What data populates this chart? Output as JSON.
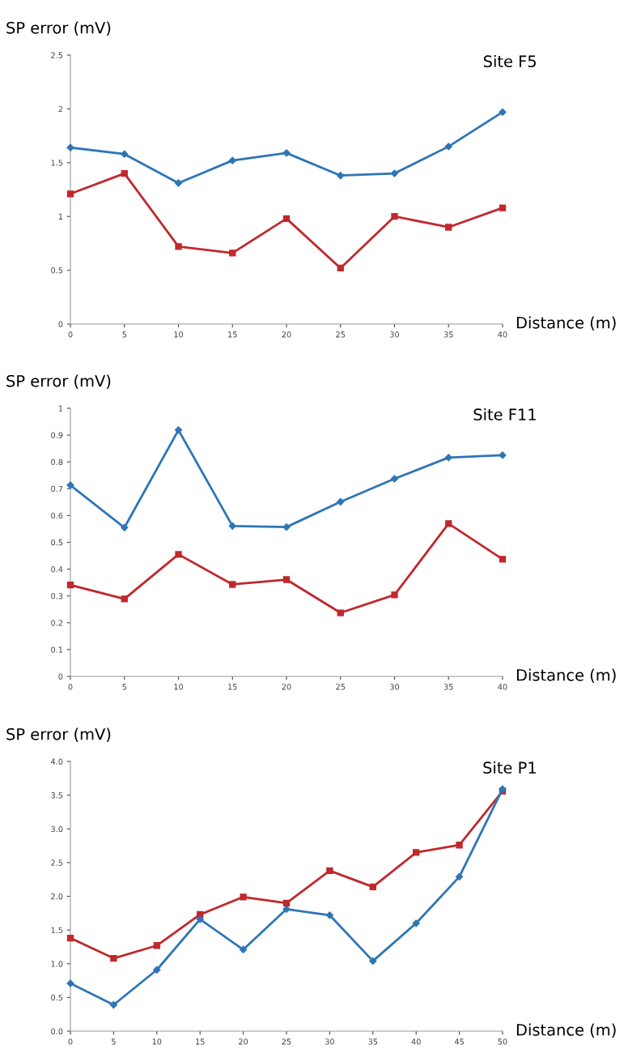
{
  "chart_data": [
    {
      "type": "line",
      "title": "Site F5",
      "xlabel": "Distance (m)",
      "ylabel": "SP error (mV)",
      "x": [
        0,
        5,
        10,
        15,
        20,
        25,
        30,
        35,
        40
      ],
      "series": [
        {
          "color": "#2e75b6",
          "marker": "diamond",
          "values": [
            1.64,
            1.58,
            1.31,
            1.52,
            1.59,
            1.38,
            1.4,
            1.65,
            1.97
          ]
        },
        {
          "color": "#c0282d",
          "marker": "square",
          "values": [
            1.21,
            1.4,
            0.72,
            0.66,
            0.98,
            0.52,
            1.0,
            0.9,
            1.08
          ]
        }
      ],
      "xlim": [
        0,
        40
      ],
      "xticks": [
        0,
        5,
        10,
        15,
        20,
        25,
        30,
        35,
        40
      ],
      "ylim": [
        0,
        2.5
      ],
      "yticks": [
        0,
        0.5,
        1,
        1.5,
        2,
        2.5
      ],
      "grid": false
    },
    {
      "type": "line",
      "title": "Site F11",
      "xlabel": "Distance (m)",
      "ylabel": "SP error (mV)",
      "x": [
        0,
        5,
        10,
        15,
        20,
        25,
        30,
        35,
        40
      ],
      "series": [
        {
          "color": "#2e75b6",
          "marker": "diamond",
          "values": [
            0.713,
            0.555,
            0.919,
            0.561,
            0.557,
            0.651,
            0.737,
            0.816,
            0.825
          ]
        },
        {
          "color": "#c0282d",
          "marker": "square",
          "values": [
            0.341,
            0.289,
            0.455,
            0.343,
            0.361,
            0.237,
            0.304,
            0.57,
            0.437
          ]
        }
      ],
      "xlim": [
        0,
        40
      ],
      "xticks": [
        0,
        5,
        10,
        15,
        20,
        25,
        30,
        35,
        40
      ],
      "ylim": [
        0,
        1
      ],
      "yticks": [
        0,
        0.1,
        0.2,
        0.3,
        0.4,
        0.5,
        0.6,
        0.7,
        0.8,
        0.9,
        1
      ],
      "grid": false
    },
    {
      "type": "line",
      "title": "Site P1",
      "xlabel": "Distance (m)",
      "ylabel": "SP error (mV)",
      "x": [
        0,
        5,
        10,
        15,
        20,
        25,
        30,
        35,
        40,
        45,
        50
      ],
      "series": [
        {
          "color": "#2e75b6",
          "marker": "diamond",
          "values": [
            0.71,
            0.39,
            0.91,
            1.66,
            1.21,
            1.81,
            1.72,
            1.04,
            1.6,
            2.29,
            3.59
          ]
        },
        {
          "color": "#c0282d",
          "marker": "square",
          "values": [
            1.38,
            1.08,
            1.27,
            1.73,
            1.99,
            1.9,
            2.38,
            2.14,
            2.65,
            2.76,
            3.56
          ]
        }
      ],
      "xlim": [
        0,
        50
      ],
      "xticks": [
        0,
        5,
        10,
        15,
        20,
        25,
        30,
        35,
        40,
        45,
        50
      ],
      "ylim": [
        0,
        4
      ],
      "yticks": [
        {
          "value": 0,
          "label": "0.0"
        },
        {
          "value": 0.5,
          "label": "0.5"
        },
        {
          "value": 1,
          "label": "1.0"
        },
        {
          "value": 1.5,
          "label": "1.5"
        },
        {
          "value": 2,
          "label": "2.0"
        },
        {
          "value": 2.5,
          "label": "2.5"
        },
        {
          "value": 3,
          "label": "3.0"
        },
        {
          "value": 3.5,
          "label": "3.5"
        },
        {
          "value": 4,
          "label": "4.0"
        }
      ],
      "grid": false
    }
  ]
}
